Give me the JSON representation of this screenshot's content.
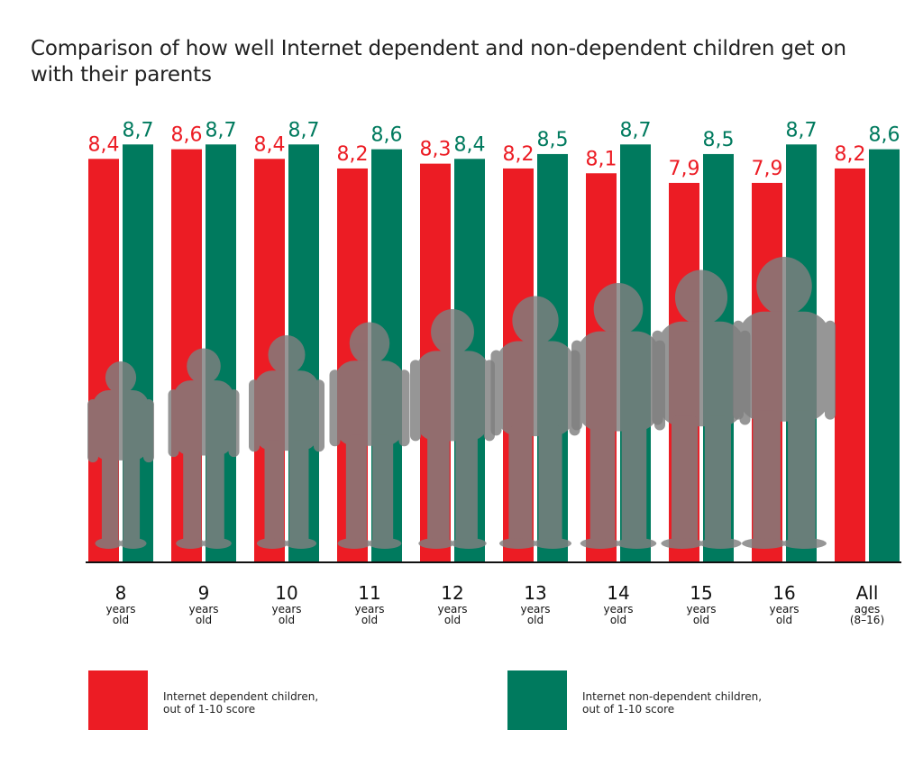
{
  "chart_data": {
    "type": "bar",
    "title": "Comparison of how well Internet dependent and non-dependent children get on with their parents",
    "categories": [
      {
        "main": "8",
        "sub": [
          "years",
          "old"
        ]
      },
      {
        "main": "9",
        "sub": [
          "years",
          "old"
        ]
      },
      {
        "main": "10",
        "sub": [
          "years",
          "old"
        ]
      },
      {
        "main": "11",
        "sub": [
          "years",
          "old"
        ]
      },
      {
        "main": "12",
        "sub": [
          "years",
          "old"
        ]
      },
      {
        "main": "13",
        "sub": [
          "years",
          "old"
        ]
      },
      {
        "main": "14",
        "sub": [
          "years",
          "old"
        ]
      },
      {
        "main": "15",
        "sub": [
          "years",
          "old"
        ]
      },
      {
        "main": "16",
        "sub": [
          "years",
          "old"
        ]
      },
      {
        "main": "All",
        "sub": [
          "ages",
          "(8–16)"
        ]
      }
    ],
    "series": [
      {
        "name": "Internet dependent children, out of 1-10 score",
        "color": "#ec1c24",
        "values": [
          8.4,
          8.6,
          8.4,
          8.2,
          8.3,
          8.2,
          8.1,
          7.9,
          7.9,
          8.2
        ],
        "labels": [
          "8,4",
          "8,6",
          "8,4",
          "8,2",
          "8,3",
          "8,2",
          "8,1",
          "7,9",
          "7,9",
          "8,2"
        ]
      },
      {
        "name": "Internet non-dependent children, out of 1-10 score",
        "color": "#007a5e",
        "values": [
          8.7,
          8.7,
          8.7,
          8.6,
          8.4,
          8.5,
          8.7,
          8.5,
          8.7,
          8.6
        ],
        "labels": [
          "8,7",
          "8,7",
          "8,7",
          "8,6",
          "8,4",
          "8,5",
          "8,7",
          "8,5",
          "8,7",
          "8,6"
        ]
      }
    ],
    "silhouette_color": "#7f7f7f",
    "legend": {
      "placement": "bottom",
      "items": [
        {
          "label": "Internet dependent children,\nout of 1-10 score",
          "color": "#ec1c24"
        },
        {
          "label": "Internet non-dependent children,\nout of 1-10 score",
          "color": "#007a5e"
        }
      ]
    }
  }
}
